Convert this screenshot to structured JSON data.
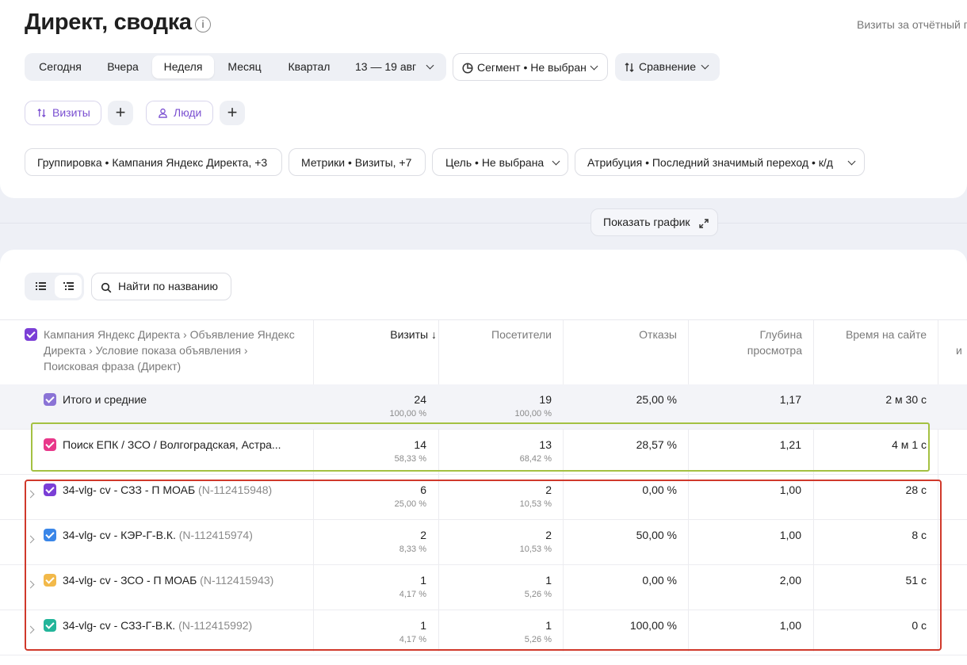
{
  "header": {
    "title": "Директ, сводка",
    "info_glyph": "i",
    "report_visits": "Визиты за отчётный п"
  },
  "period": {
    "buttons": [
      "Сегодня",
      "Вчера",
      "Неделя",
      "Месяц",
      "Квартал"
    ],
    "active": "Неделя",
    "date_range": "13 — 19 авг"
  },
  "segment_label": "Сегмент • Не выбран",
  "comparison_label": "Сравнение",
  "metric_pills": {
    "visits": "Визиты",
    "people": "Люди",
    "plus": "+"
  },
  "filters": {
    "grouping": "Группировка • Кампания Яндекс Директа, +3",
    "metrics": "Метрики • Визиты, +7",
    "goal": "Цель • Не выбрана",
    "attribution": "Атрибуция • Последний значимый переход • к/д"
  },
  "show_chart_label": "Показать график",
  "search": {
    "placeholder": "Найти по названию"
  },
  "table": {
    "dimension_header": "Кампания Яндекс Директа › Объявление Яндекс Директа › Условие показа объявления › Поисковая фраза (Директ)",
    "columns": {
      "visits": "Визиты ↓",
      "visitors": "Посетители",
      "bounces": "Отказы",
      "depth_line1": "Глубина",
      "depth_line2": "просмотра",
      "time": "Время на сайте",
      "extra": "и"
    },
    "total": {
      "name": "Итого и средние",
      "visits": "24",
      "visits_pct": "100,00 %",
      "visitors": "19",
      "visitors_pct": "100,00 %",
      "bounces": "25,00 %",
      "depth": "1,17",
      "time": "2 м 30 с"
    },
    "rows": [
      {
        "name": "Поиск ЕПК / ЗСО / Волгоградская, Астра...",
        "sub": "",
        "color": "#e8388a",
        "visits": "14",
        "visits_pct": "58,33 %",
        "visitors": "13",
        "visitors_pct": "68,42 %",
        "bounces": "28,57 %",
        "depth": "1,21",
        "time": "4 м 1 с"
      },
      {
        "name": "34-vlg- cv - СЗЗ - П МОАБ",
        "sub": "(N-112415948)",
        "color": "#7b3fd6",
        "visits": "6",
        "visits_pct": "25,00 %",
        "visitors": "2",
        "visitors_pct": "10,53 %",
        "bounces": "0,00 %",
        "depth": "1,00",
        "time": "28 с"
      },
      {
        "name": "34-vlg- cv - КЭР-Г-В.К.",
        "sub": "(N-112415974)",
        "color": "#3a86e8",
        "visits": "2",
        "visits_pct": "8,33 %",
        "visitors": "2",
        "visitors_pct": "10,53 %",
        "bounces": "50,00 %",
        "depth": "1,00",
        "time": "8 с"
      },
      {
        "name": "34-vlg- cv - ЗСО - П МОАБ",
        "sub": "(N-112415943)",
        "color": "#f2b94a",
        "visits": "1",
        "visits_pct": "4,17 %",
        "visitors": "1",
        "visitors_pct": "5,26 %",
        "bounces": "0,00 %",
        "depth": "2,00",
        "time": "51 с"
      },
      {
        "name": "34-vlg- cv - СЗЗ-Г-В.К.",
        "sub": "(N-112415992)",
        "color": "#23b59a",
        "visits": "1",
        "visits_pct": "4,17 %",
        "visitors": "1",
        "visitors_pct": "5,26 %",
        "bounces": "100,00 %",
        "depth": "1,00",
        "time": "0 с"
      }
    ]
  },
  "colors": {
    "accent_purple": "#7b3fd6",
    "highlight_green": "#a4c142",
    "highlight_red": "#d0392b"
  }
}
